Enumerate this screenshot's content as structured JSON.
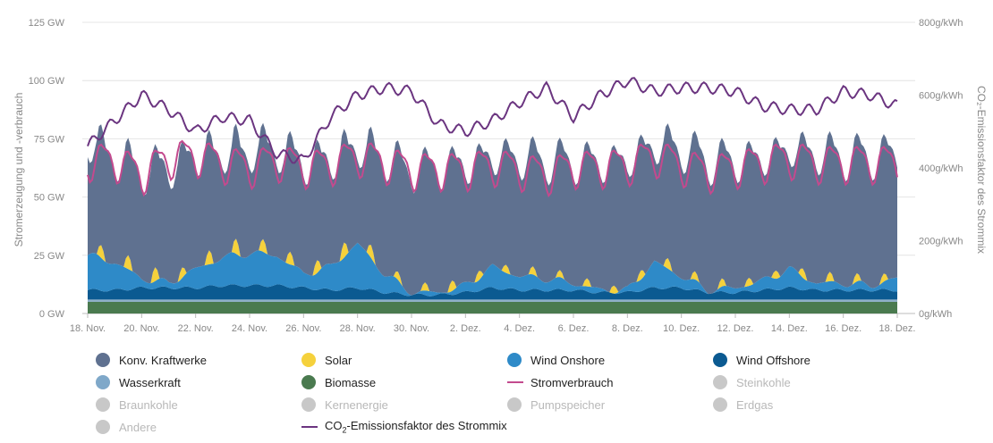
{
  "chart_data": {
    "type": "area",
    "x_tick_labels": [
      "18. Nov.",
      "20. Nov.",
      "22. Nov.",
      "24. Nov.",
      "26. Nov.",
      "28. Nov.",
      "30. Nov.",
      "2. Dez.",
      "4. Dez.",
      "6. Dez.",
      "8. Dez.",
      "10. Dez.",
      "12. Dez.",
      "14. Dez.",
      "16. Dez.",
      "18. Dez."
    ],
    "x_range_days": [
      0,
      30
    ],
    "y_left": {
      "label": "Stromerzeugung und -verbrauch",
      "ticks": [
        "0 GW",
        "25 GW",
        "50 GW",
        "75 GW",
        "100 GW",
        "125 GW"
      ],
      "range": [
        0,
        125
      ],
      "unit": "GW"
    },
    "y_right": {
      "label": "CO₂-Emissionsfaktor des Strommix",
      "ticks": [
        "0g/kWh",
        "200g/kWh",
        "400g/kWh",
        "600g/kWh",
        "800g/kWh"
      ],
      "range": [
        0,
        800
      ],
      "unit": "g/kWh"
    },
    "series": [
      {
        "name": "Biomasse",
        "color": "#4a7a4f",
        "type": "stacked-area",
        "values": [
          5,
          5,
          5,
          5,
          5,
          5,
          5,
          5,
          5,
          5,
          5,
          5,
          5,
          5,
          5,
          5,
          5,
          5,
          5,
          5,
          5,
          5,
          5,
          5,
          5,
          5,
          5,
          5,
          5,
          5,
          5
        ]
      },
      {
        "name": "Wasserkraft",
        "color": "#8fb0c8",
        "type": "stacked-area",
        "values": [
          1,
          1,
          1,
          1,
          1,
          1,
          1,
          1,
          1,
          1,
          1,
          1,
          1,
          1,
          1,
          1,
          1,
          1,
          1,
          1,
          1,
          1,
          1,
          1,
          1,
          1,
          1,
          1,
          1,
          1,
          1
        ]
      },
      {
        "name": "Wind Offshore",
        "color": "#0b5a91",
        "type": "stacked-area",
        "values": [
          4,
          4,
          5,
          5,
          5,
          6,
          6,
          6,
          5,
          4,
          5,
          3,
          2,
          2,
          3,
          5,
          4,
          4,
          4,
          3,
          3,
          5,
          5,
          3,
          3,
          4,
          5,
          4,
          4,
          4,
          4
        ]
      },
      {
        "name": "Wind Onshore",
        "color": "#2e8ac8",
        "type": "stacked-area",
        "values": [
          15,
          12,
          4,
          2,
          8,
          12,
          14,
          13,
          6,
          10,
          19,
          8,
          1,
          1,
          3,
          9,
          6,
          5,
          3,
          1,
          1,
          11,
          5,
          1,
          2,
          4,
          8,
          3,
          3,
          2,
          5
        ]
      },
      {
        "name": "Solar",
        "color": "#f5d13c",
        "type": "stacked-area-daily-peak",
        "values": [
          6,
          5,
          7,
          5,
          4,
          8,
          5,
          6,
          5,
          6,
          7,
          4,
          3,
          4,
          5,
          3,
          4,
          3,
          3,
          4,
          3,
          5,
          4,
          3,
          4,
          3,
          4,
          4,
          4,
          3,
          4
        ]
      },
      {
        "name": "Konv. Kraftwerke",
        "color": "#5f7190",
        "type": "stacked-area",
        "values": [
          48,
          44,
          45,
          49,
          48,
          44,
          43,
          45,
          47,
          45,
          41,
          49,
          52,
          53,
          51,
          47,
          50,
          50,
          52,
          54,
          55,
          50,
          54,
          55,
          54,
          52,
          51,
          55,
          54,
          55,
          53
        ]
      },
      {
        "name": "Stromverbrauch",
        "color": "#c34a8e",
        "type": "line",
        "values": [
          66,
          66,
          60,
          67,
          68,
          65,
          63,
          66,
          63,
          64,
          68,
          65,
          62,
          62,
          62,
          64,
          62,
          60,
          63,
          63,
          64,
          68,
          64,
          61,
          63,
          65,
          67,
          65,
          65,
          65,
          65
        ]
      },
      {
        "name": "CO₂-Emissionsfaktor des Strommix",
        "color": "#6b3580",
        "type": "line-right-axis",
        "values": [
          460,
          530,
          600,
          560,
          500,
          540,
          530,
          440,
          420,
          540,
          600,
          620,
          610,
          520,
          500,
          530,
          580,
          620,
          540,
          600,
          640,
          610,
          620,
          620,
          610,
          570,
          560,
          560,
          610,
          600,
          570
        ]
      }
    ]
  },
  "legend": [
    {
      "label": "Konv. Kraftwerke",
      "color": "#5f7190",
      "active": true,
      "marker": "dot"
    },
    {
      "label": "Solar",
      "color": "#f5d13c",
      "active": true,
      "marker": "dot"
    },
    {
      "label": "Wind Onshore",
      "color": "#2e8ac8",
      "active": true,
      "marker": "dot"
    },
    {
      "label": "Wind Offshore",
      "color": "#0b5a91",
      "active": true,
      "marker": "dot"
    },
    {
      "label": "Wasserkraft",
      "color": "#7fa8c9",
      "active": true,
      "marker": "dot"
    },
    {
      "label": "Biomasse",
      "color": "#4a7a4f",
      "active": true,
      "marker": "dot"
    },
    {
      "label": "Stromverbrauch",
      "color": "#c34a8e",
      "active": true,
      "marker": "line"
    },
    {
      "label": "Steinkohle",
      "color": "#c8c8c8",
      "active": false,
      "marker": "dot"
    },
    {
      "label": "Braunkohle",
      "color": "#c8c8c8",
      "active": false,
      "marker": "dot"
    },
    {
      "label": "Kernenergie",
      "color": "#c8c8c8",
      "active": false,
      "marker": "dot"
    },
    {
      "label": "Pumpspeicher",
      "color": "#c8c8c8",
      "active": false,
      "marker": "dot"
    },
    {
      "label": "Erdgas",
      "color": "#c8c8c8",
      "active": false,
      "marker": "dot"
    },
    {
      "label": "Andere",
      "color": "#c8c8c8",
      "active": false,
      "marker": "dot"
    },
    {
      "label": "CO₂-Emissionsfaktor des Strommix",
      "label_prefix": "CO",
      "label_sub": "2",
      "label_suffix": "-Emissionsfaktor des Strommix",
      "color": "#6b3580",
      "active": true,
      "marker": "line"
    }
  ]
}
